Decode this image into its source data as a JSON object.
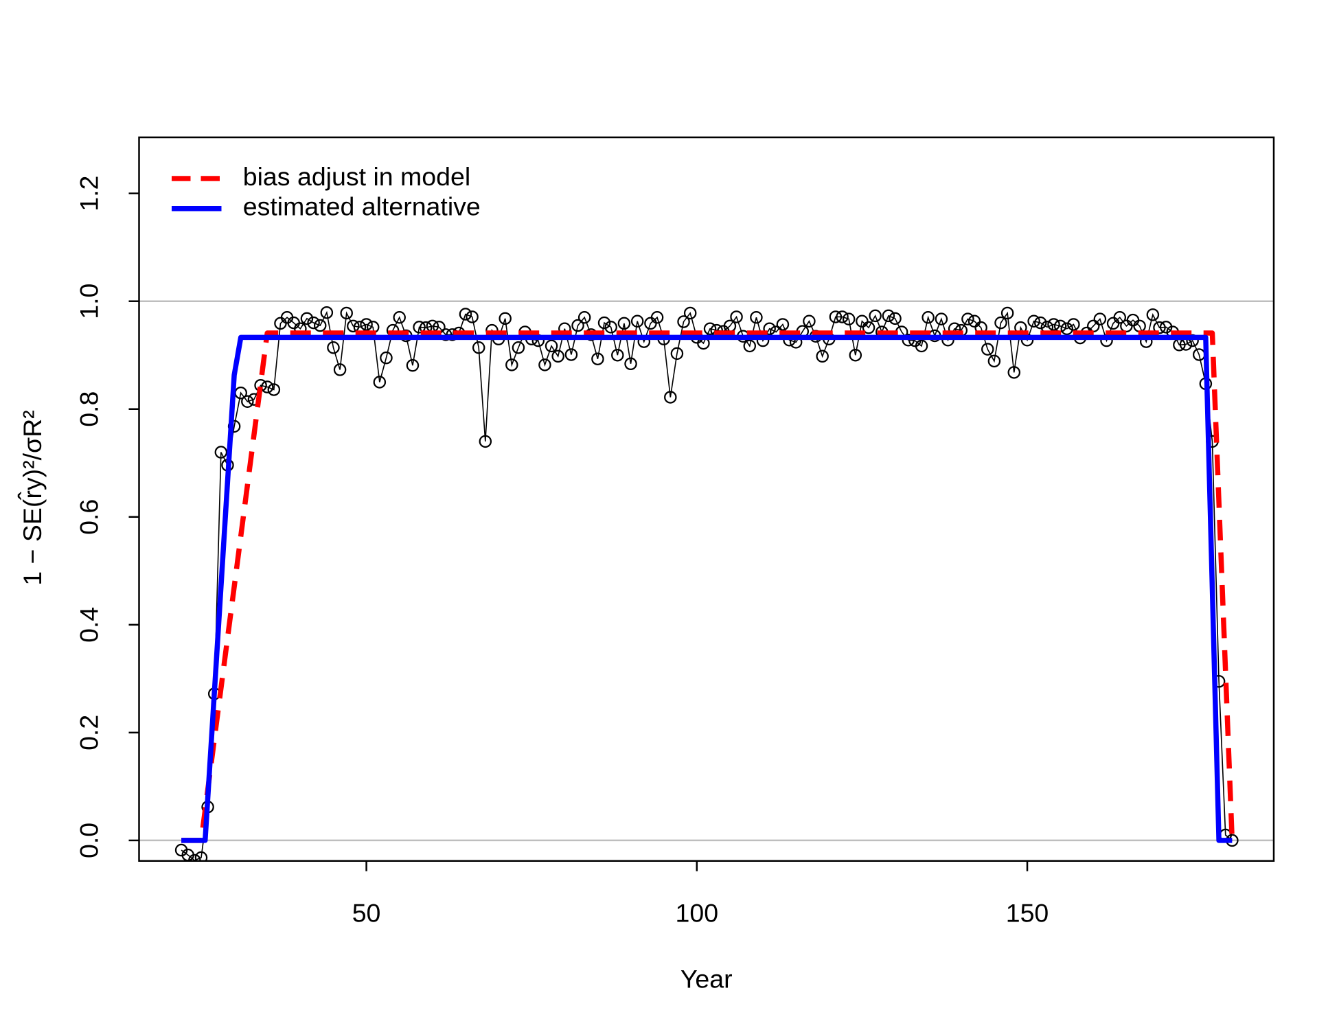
{
  "chart_data": {
    "type": "line",
    "xlabel": "Year",
    "ylabel": "1 − SE(r̂y)²/σR²",
    "xlim": [
      15.6,
      187.3
    ],
    "ylim": [
      -0.038,
      1.304
    ],
    "xticks": [
      50,
      100,
      150
    ],
    "yticks": [
      {
        "value": 0,
        "label": "0.0"
      },
      {
        "value": 0.2,
        "label": "0.2"
      },
      {
        "value": 0.4,
        "label": "0.4"
      },
      {
        "value": 0.6,
        "label": "0.6"
      },
      {
        "value": 0.8,
        "label": "0.8"
      },
      {
        "value": 1,
        "label": "1.0"
      },
      {
        "value": 1.2,
        "label": "1.2"
      }
    ],
    "hlines": [
      0,
      1
    ],
    "hline_color": "#bebebe",
    "legend": "top-left",
    "points": {
      "color": "#000000",
      "x": [
        22,
        23,
        24,
        25,
        26,
        27,
        28,
        29,
        30,
        31,
        32,
        33,
        34,
        35,
        36,
        37,
        38,
        39,
        40,
        41,
        42,
        43,
        44,
        45,
        46,
        47,
        48,
        49,
        50,
        51,
        52,
        53,
        54,
        55,
        56,
        57,
        58,
        59,
        60,
        61,
        62,
        63,
        64,
        65,
        66,
        67,
        68,
        69,
        70,
        71,
        72,
        73,
        74,
        75,
        76,
        77,
        78,
        79,
        80,
        81,
        82,
        83,
        84,
        85,
        86,
        87,
        88,
        89,
        90,
        91,
        92,
        93,
        94,
        95,
        96,
        97,
        98,
        99,
        100,
        101,
        102,
        103,
        104,
        105,
        106,
        107,
        108,
        109,
        110,
        111,
        112,
        113,
        114,
        115,
        116,
        117,
        118,
        119,
        120,
        121,
        122,
        123,
        124,
        125,
        126,
        127,
        128,
        129,
        130,
        131,
        132,
        133,
        134,
        135,
        136,
        137,
        138,
        139,
        140,
        141,
        142,
        143,
        144,
        145,
        146,
        147,
        148,
        149,
        150,
        151,
        152,
        153,
        154,
        155,
        156,
        157,
        158,
        159,
        160,
        161,
        162,
        163,
        164,
        165,
        166,
        167,
        168,
        169,
        170,
        171,
        172,
        173,
        174,
        175,
        176,
        177,
        178,
        179,
        180,
        181
      ],
      "values": [
        -0.018,
        -0.027,
        -0.037,
        -0.032,
        0.062,
        0.272,
        0.72,
        0.696,
        0.768,
        0.83,
        0.814,
        0.818,
        0.844,
        0.841,
        0.836,
        0.959,
        0.97,
        0.96,
        0.949,
        0.968,
        0.96,
        0.955,
        0.979,
        0.914,
        0.873,
        0.978,
        0.954,
        0.952,
        0.957,
        0.952,
        0.85,
        0.895,
        0.946,
        0.97,
        0.936,
        0.881,
        0.952,
        0.951,
        0.954,
        0.952,
        0.938,
        0.938,
        0.941,
        0.976,
        0.971,
        0.914,
        0.74,
        0.946,
        0.93,
        0.968,
        0.882,
        0.914,
        0.943,
        0.93,
        0.927,
        0.882,
        0.917,
        0.898,
        0.949,
        0.901,
        0.955,
        0.97,
        0.938,
        0.893,
        0.96,
        0.952,
        0.9,
        0.959,
        0.884,
        0.963,
        0.925,
        0.959,
        0.97,
        0.93,
        0.822,
        0.903,
        0.962,
        0.978,
        0.933,
        0.922,
        0.949,
        0.946,
        0.944,
        0.954,
        0.971,
        0.935,
        0.917,
        0.97,
        0.927,
        0.949,
        0.943,
        0.957,
        0.928,
        0.924,
        0.944,
        0.963,
        0.935,
        0.898,
        0.93,
        0.971,
        0.971,
        0.967,
        0.9,
        0.963,
        0.951,
        0.973,
        0.943,
        0.973,
        0.968,
        0.943,
        0.928,
        0.927,
        0.917,
        0.97,
        0.936,
        0.967,
        0.928,
        0.949,
        0.946,
        0.967,
        0.963,
        0.951,
        0.911,
        0.889,
        0.96,
        0.978,
        0.868,
        0.951,
        0.928,
        0.963,
        0.96,
        0.952,
        0.957,
        0.954,
        0.949,
        0.957,
        0.932,
        0.941,
        0.954,
        0.967,
        0.927,
        0.959,
        0.97,
        0.954,
        0.965,
        0.954,
        0.925,
        0.975,
        0.951,
        0.952,
        0.943,
        0.919,
        0.92,
        0.927,
        0.901,
        0.847,
        0.74,
        0.295,
        0.01,
        0.0
      ]
    },
    "series": [
      {
        "name": "bias adjust in model",
        "color": "#ff0000",
        "linestyle": "dashed",
        "x": [
          22,
          25,
          35,
          178,
          181
        ],
        "values": [
          0,
          0,
          0.941,
          0.941,
          0
        ]
      },
      {
        "name": "estimated alternative",
        "color": "#0000ff",
        "linestyle": "solid",
        "x": [
          22,
          25.6,
          30,
          31,
          177,
          179,
          181
        ],
        "values": [
          0,
          0,
          0.863,
          0.933,
          0.933,
          0,
          0
        ]
      }
    ]
  }
}
